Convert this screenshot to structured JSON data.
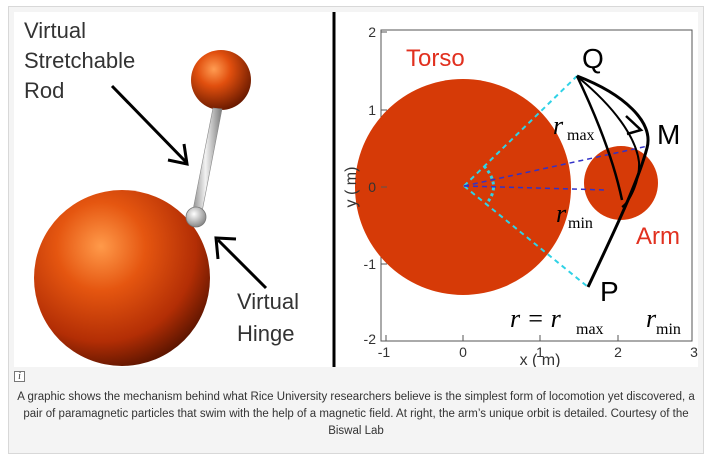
{
  "left_panel": {
    "label_rod_line1": "Virtual",
    "label_rod_line2": "Stretchable",
    "label_rod_line3": "Rod",
    "label_hinge_line1": "Virtual",
    "label_hinge_line2": "Hinge"
  },
  "plot": {
    "torso_label": "Torso",
    "arm_label": "Arm",
    "point_q": "Q",
    "point_m": "M",
    "point_p": "P",
    "r_symbol": "r",
    "rmax_sub": "max",
    "rmin_sub": "min",
    "equation_lhs": "r = r",
    "equation_sub": "max",
    "equation_rhs": "r",
    "equation_rhs_sub": "min",
    "xlabel": "x ( m)",
    "ylabel": "y ( m)",
    "xticks": [
      "-1",
      "0",
      "1",
      "2",
      "3"
    ],
    "yticks": [
      "2",
      "1",
      "0",
      "-1",
      "-2"
    ]
  },
  "colors": {
    "torso": "#d63a07",
    "label_red": "#e1301f",
    "sphere": "#d9440a",
    "cyan": "#2fd2e6",
    "blue": "#3232c8"
  },
  "info_icon": "i",
  "caption": "A graphic shows the mechanism behind what Rice University researchers believe is the simplest form of locomotion yet discovered, a pair of paramagnetic particles that swim with the help of a magnetic field. At right, the arm’s unique orbit is detailed. Courtesy of the Biswal Lab"
}
